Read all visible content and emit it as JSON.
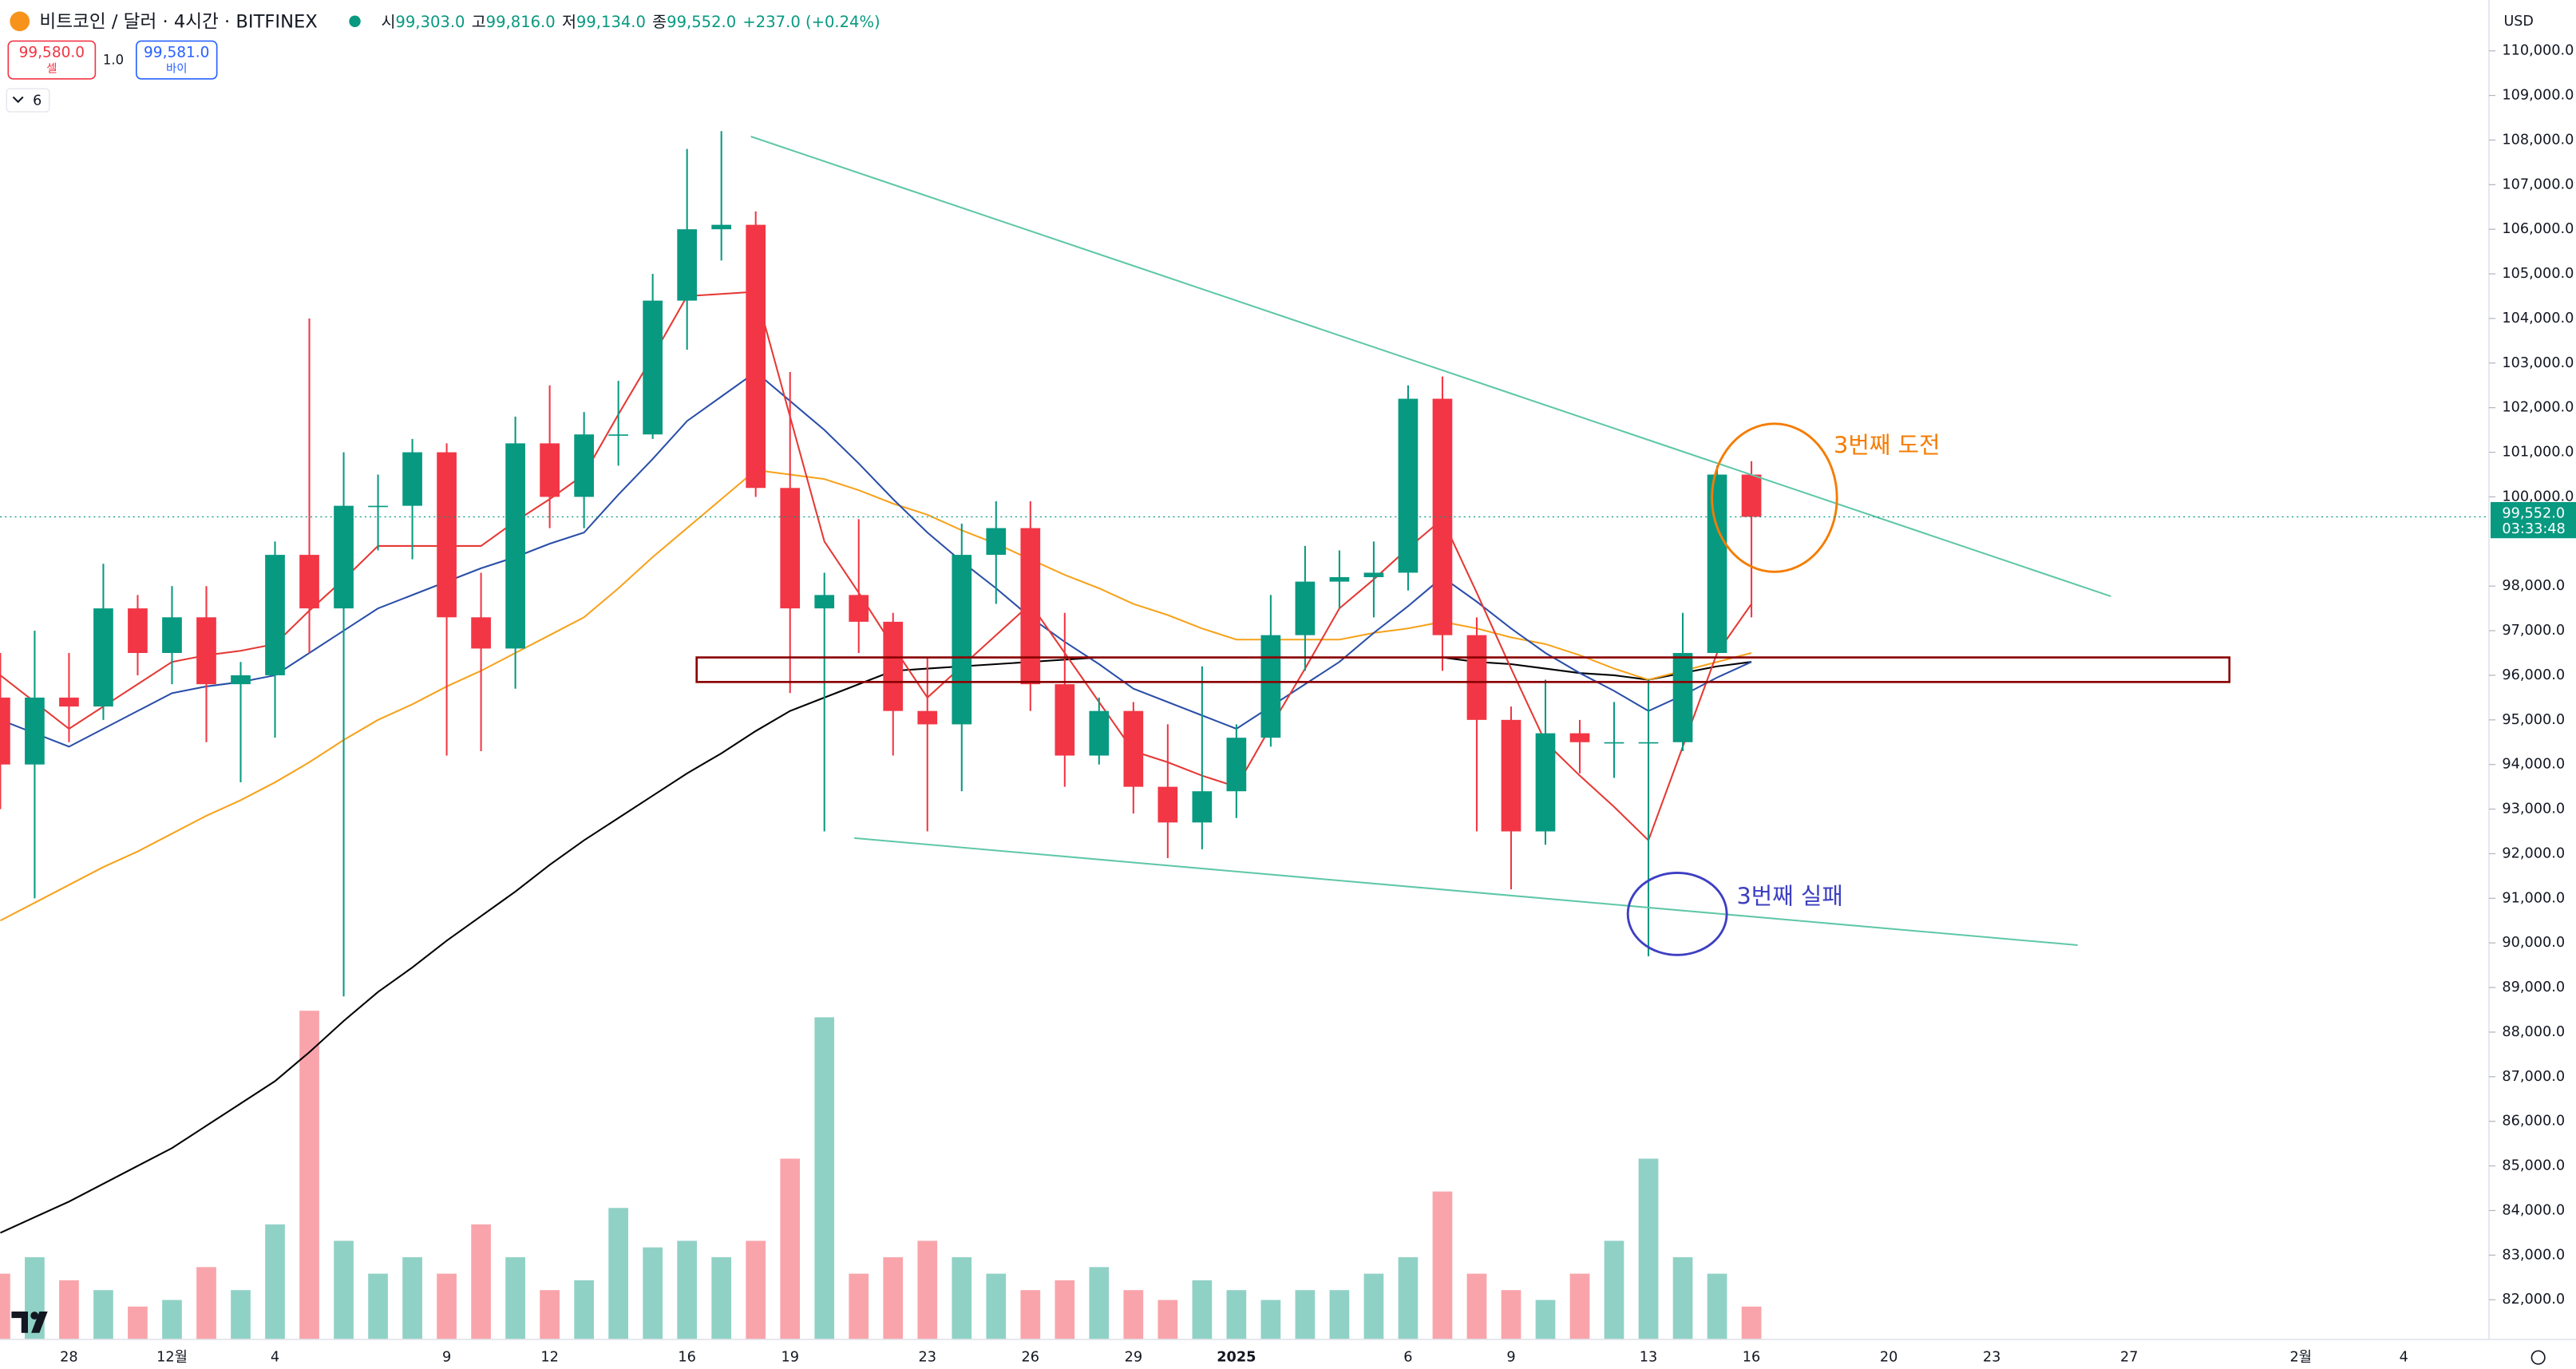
{
  "toolbar": {
    "symbol": "비트코인 / 달러 · 4시간 · BITFINEX",
    "ohlc": [
      {
        "label": "시",
        "value": "99,303.0"
      },
      {
        "label": "고",
        "value": "99,816.0"
      },
      {
        "label": "저",
        "value": "99,134.0"
      },
      {
        "label": "종",
        "value": "99,552.0"
      }
    ],
    "change": "+237.0 (+0.24%)",
    "sell_price": "99,580.0",
    "sell_label": "셀",
    "quantity": "1.0",
    "buy_price": "99,581.0",
    "buy_label": "바이",
    "indicators": "6",
    "currency": "USD"
  },
  "chart_data": {
    "type": "candlestick",
    "up_color": "#089981",
    "down_color": "#f23645",
    "categories": [
      null,
      null,
      "28",
      null,
      null,
      "12월",
      null,
      null,
      "4",
      null,
      null,
      null,
      null,
      "9",
      null,
      null,
      "12",
      null,
      null,
      null,
      "16",
      null,
      null,
      "19",
      null,
      null,
      null,
      "23",
      null,
      null,
      "26",
      null,
      null,
      "29",
      null,
      null,
      "2025",
      null,
      null,
      null,
      null,
      "6",
      null,
      null,
      "9",
      null,
      null,
      null,
      "13",
      null,
      null,
      "16",
      null,
      null,
      null,
      "20",
      null,
      null,
      "23",
      null,
      null,
      null,
      "27",
      null,
      null,
      null,
      null,
      "2월",
      null,
      null,
      "4",
      null,
      null
    ],
    "open": [
      95500,
      94000,
      95500,
      95300,
      97500,
      96500,
      97300,
      95800,
      96000,
      98700,
      97500,
      99800,
      99800,
      101000,
      97300,
      96600,
      101200,
      100000,
      101400,
      101400,
      104400,
      106000,
      106100,
      100200,
      97500,
      97800,
      97200,
      95200,
      94900,
      98700,
      99300,
      95800,
      94200,
      95200,
      93500,
      92700,
      93400,
      94600,
      96900,
      98100,
      98200,
      98300,
      102200,
      96900,
      95000,
      92500,
      94700,
      94500,
      94500,
      94500,
      96500,
      100500,
      null,
      null,
      null,
      null,
      null,
      null,
      null,
      null,
      null,
      null,
      null,
      null,
      null,
      null,
      null,
      null,
      null,
      null,
      null,
      null,
      null
    ],
    "high": [
      96500,
      97000,
      96500,
      98500,
      97800,
      98000,
      98000,
      96300,
      99000,
      104000,
      101000,
      100500,
      101300,
      101200,
      98300,
      101800,
      102500,
      101900,
      102600,
      105000,
      107800,
      108200,
      106400,
      102800,
      98300,
      99500,
      97400,
      96400,
      99400,
      99900,
      99900,
      97400,
      95500,
      95400,
      94900,
      96200,
      94900,
      97800,
      98900,
      98800,
      99000,
      102500,
      102700,
      97300,
      95300,
      95900,
      95000,
      95400,
      95900,
      97400,
      100700,
      100800,
      null,
      null,
      null,
      null,
      null,
      null,
      null,
      null,
      null,
      null,
      null,
      null,
      null,
      null,
      null,
      null,
      null,
      null,
      null,
      null,
      null
    ],
    "low": [
      93000,
      91000,
      94500,
      95000,
      96000,
      95800,
      94500,
      93600,
      94600,
      96500,
      88800,
      98800,
      98600,
      94200,
      94300,
      95700,
      99300,
      99300,
      100700,
      101300,
      103300,
      105300,
      100000,
      95600,
      92500,
      96500,
      94200,
      92500,
      93400,
      97600,
      95200,
      93500,
      94000,
      92900,
      91900,
      92100,
      92800,
      94400,
      96100,
      97500,
      97300,
      97900,
      96100,
      92500,
      91200,
      92200,
      93800,
      93700,
      89700,
      94300,
      96500,
      97300,
      null,
      null,
      null,
      null,
      null,
      null,
      null,
      null,
      null,
      null,
      null,
      null,
      null,
      null,
      null,
      null,
      null,
      null,
      null,
      null,
      null
    ],
    "close": [
      94000,
      95500,
      95300,
      97500,
      96500,
      97300,
      95800,
      96000,
      98700,
      97500,
      99800,
      99800,
      101000,
      97300,
      96600,
      101200,
      100000,
      101400,
      101400,
      104400,
      106000,
      106100,
      100200,
      97500,
      97800,
      97200,
      95200,
      94900,
      98700,
      99300,
      95800,
      94200,
      95200,
      93500,
      92700,
      93400,
      94600,
      96900,
      98100,
      98200,
      98300,
      102200,
      96900,
      95000,
      92500,
      94700,
      94500,
      94500,
      94500,
      96500,
      100500,
      99552,
      null,
      null,
      null,
      null,
      null,
      null,
      null,
      null,
      null,
      null,
      null,
      null,
      null,
      null,
      null,
      null,
      null,
      null,
      null,
      null,
      null
    ],
    "volume": [
      20,
      25,
      18,
      15,
      10,
      12,
      22,
      15,
      35,
      100,
      30,
      20,
      25,
      20,
      35,
      25,
      15,
      18,
      40,
      28,
      30,
      25,
      30,
      55,
      98,
      20,
      25,
      30,
      25,
      20,
      15,
      18,
      22,
      15,
      12,
      18,
      15,
      12,
      15,
      15,
      20,
      25,
      45,
      20,
      15,
      12,
      20,
      30,
      55,
      25,
      20,
      10,
      null,
      null,
      null,
      null,
      null,
      null,
      null,
      null,
      null,
      null,
      null,
      null,
      null,
      null,
      null,
      null,
      null,
      null,
      null,
      null,
      null
    ],
    "series": [
      {
        "color": "#000000",
        "values": [
          83500,
          83850,
          84200,
          84600,
          85000,
          85400,
          85900,
          86400,
          86900,
          87550,
          88250,
          88900,
          89450,
          90050,
          90600,
          91150,
          91750,
          92300,
          92800,
          93300,
          93800,
          94250,
          94750,
          95200,
          95500,
          95800,
          96100,
          96150,
          96200,
          96250,
          96300,
          96350,
          96400,
          96400,
          96400,
          96400,
          96400,
          96400,
          96400,
          96400,
          96400,
          96400,
          96400,
          96300,
          96250,
          96150,
          96050,
          96000,
          95900,
          96050,
          96200,
          96300,
          null,
          null,
          null,
          null,
          null,
          null,
          null,
          null,
          null,
          null,
          null,
          null,
          null,
          null,
          null,
          null,
          null,
          null,
          null,
          null,
          null
        ]
      },
      {
        "color": "#f7a21b",
        "values": [
          90500,
          90900,
          91300,
          91700,
          92050,
          92450,
          92850,
          93200,
          93600,
          94050,
          94550,
          95000,
          95350,
          95750,
          96100,
          96500,
          96900,
          97300,
          97950,
          98650,
          99300,
          99950,
          100600,
          100500,
          100400,
          100150,
          99850,
          99600,
          99250,
          98950,
          98600,
          98250,
          97950,
          97600,
          97350,
          97050,
          96800,
          96800,
          96800,
          96800,
          96950,
          97050,
          97200,
          97050,
          96850,
          96700,
          96450,
          96150,
          95900,
          96100,
          96300,
          96500,
          null,
          null,
          null,
          null,
          null,
          null,
          null,
          null,
          null,
          null,
          null,
          null,
          null,
          null,
          null,
          null,
          null,
          null,
          null,
          null,
          null
        ]
      },
      {
        "color": "#2a4fa8",
        "values": [
          95000,
          94700,
          94400,
          94800,
          95200,
          95600,
          95750,
          95850,
          96000,
          96500,
          97000,
          97500,
          97800,
          98100,
          98400,
          98650,
          98950,
          99200,
          100050,
          100850,
          101700,
          102250,
          102800,
          102150,
          101500,
          100750,
          99950,
          99200,
          98550,
          97950,
          97300,
          96750,
          96250,
          95700,
          95400,
          95100,
          94800,
          95300,
          95800,
          96300,
          96950,
          97550,
          98200,
          97650,
          97050,
          96500,
          96050,
          95650,
          95200,
          95550,
          95950,
          96300,
          null,
          null,
          null,
          null,
          null,
          null,
          null,
          null,
          null,
          null,
          null,
          null,
          null,
          null,
          null,
          null,
          null,
          null,
          null,
          null,
          null
        ]
      },
      {
        "color": "#e53935",
        "values": [
          96000,
          95400,
          94800,
          95300,
          95800,
          96300,
          96450,
          96550,
          96700,
          97450,
          98150,
          98900,
          98900,
          98900,
          98900,
          99450,
          99950,
          100500,
          101850,
          103150,
          104500,
          104550,
          104600,
          101800,
          99000,
          97850,
          96650,
          95500,
          96200,
          96900,
          97600,
          96500,
          95400,
          94300,
          94050,
          93750,
          93500,
          94850,
          96150,
          97500,
          98150,
          98850,
          99500,
          97850,
          96150,
          94500,
          93750,
          93050,
          92300,
          94400,
          96500,
          97600,
          null,
          null,
          null,
          null,
          null,
          null,
          null,
          null,
          null,
          null,
          null,
          null,
          null,
          null,
          null,
          null,
          null,
          null,
          null,
          null,
          null
        ]
      }
    ],
    "ylim": [
      81110,
      111140
    ],
    "yticks": [
      {
        "value": 82000,
        "label": "82,000.0"
      },
      {
        "value": 83000,
        "label": "83,000.0"
      },
      {
        "value": 84000,
        "label": "84,000.0"
      },
      {
        "value": 85000,
        "label": "85,000.0"
      },
      {
        "value": 86000,
        "label": "86,000.0"
      },
      {
        "value": 87000,
        "label": "87,000.0"
      },
      {
        "value": 88000,
        "label": "88,000.0"
      },
      {
        "value": 89000,
        "label": "89,000.0"
      },
      {
        "value": 90000,
        "label": "90,000.0"
      },
      {
        "value": 91000,
        "label": "91,000.0"
      },
      {
        "value": 92000,
        "label": "92,000.0"
      },
      {
        "value": 93000,
        "label": "93,000.0"
      },
      {
        "value": 94000,
        "label": "94,000.0"
      },
      {
        "value": 95000,
        "label": "95,000.0"
      },
      {
        "value": 96000,
        "label": "96,000.0"
      },
      {
        "value": 97000,
        "label": "97,000.0"
      },
      {
        "value": 98000,
        "label": "98,000.0"
      },
      {
        "value": 100000,
        "label": "100,000.0"
      },
      {
        "value": 101000,
        "label": "101,000.0"
      },
      {
        "value": 102000,
        "label": "102,000.0"
      },
      {
        "value": 103000,
        "label": "103,000.0"
      },
      {
        "value": 104000,
        "label": "104,000.0"
      },
      {
        "value": 105000,
        "label": "105,000.0"
      },
      {
        "value": 106000,
        "label": "106,000.0"
      },
      {
        "value": 107000,
        "label": "107,000.0"
      },
      {
        "value": 108000,
        "label": "108,000.0"
      },
      {
        "value": 109000,
        "label": "109,000.0"
      },
      {
        "value": 110000,
        "label": "110,000.0"
      }
    ],
    "last_price": {
      "value": 99552,
      "label": "99,552.0",
      "countdown": "03:33:48",
      "color": "#089981"
    },
    "trendlines": [
      {
        "color": "#5fc7a8",
        "x": [
          21.86,
          61.47
        ],
        "y": [
          108080,
          97770
        ]
      },
      {
        "color": "#5fc7a8",
        "x": [
          24.87,
          60.5
        ],
        "y": [
          92350,
          89950
        ]
      }
    ],
    "box": {
      "color": "#8b0000",
      "x": [
        20.28,
        64.92
      ],
      "y": [
        96400,
        95850
      ]
    },
    "ellipses": [
      {
        "color": "#f57c00",
        "center": [
          51.67,
          99980
        ],
        "radius": [
          1.82,
          1660
        ],
        "text": "3번째 도전"
      },
      {
        "color": "#3d3fc2",
        "center": [
          48.84,
          90650
        ],
        "radius": [
          1.44,
          920
        ],
        "text": "3번째 실패"
      }
    ]
  }
}
